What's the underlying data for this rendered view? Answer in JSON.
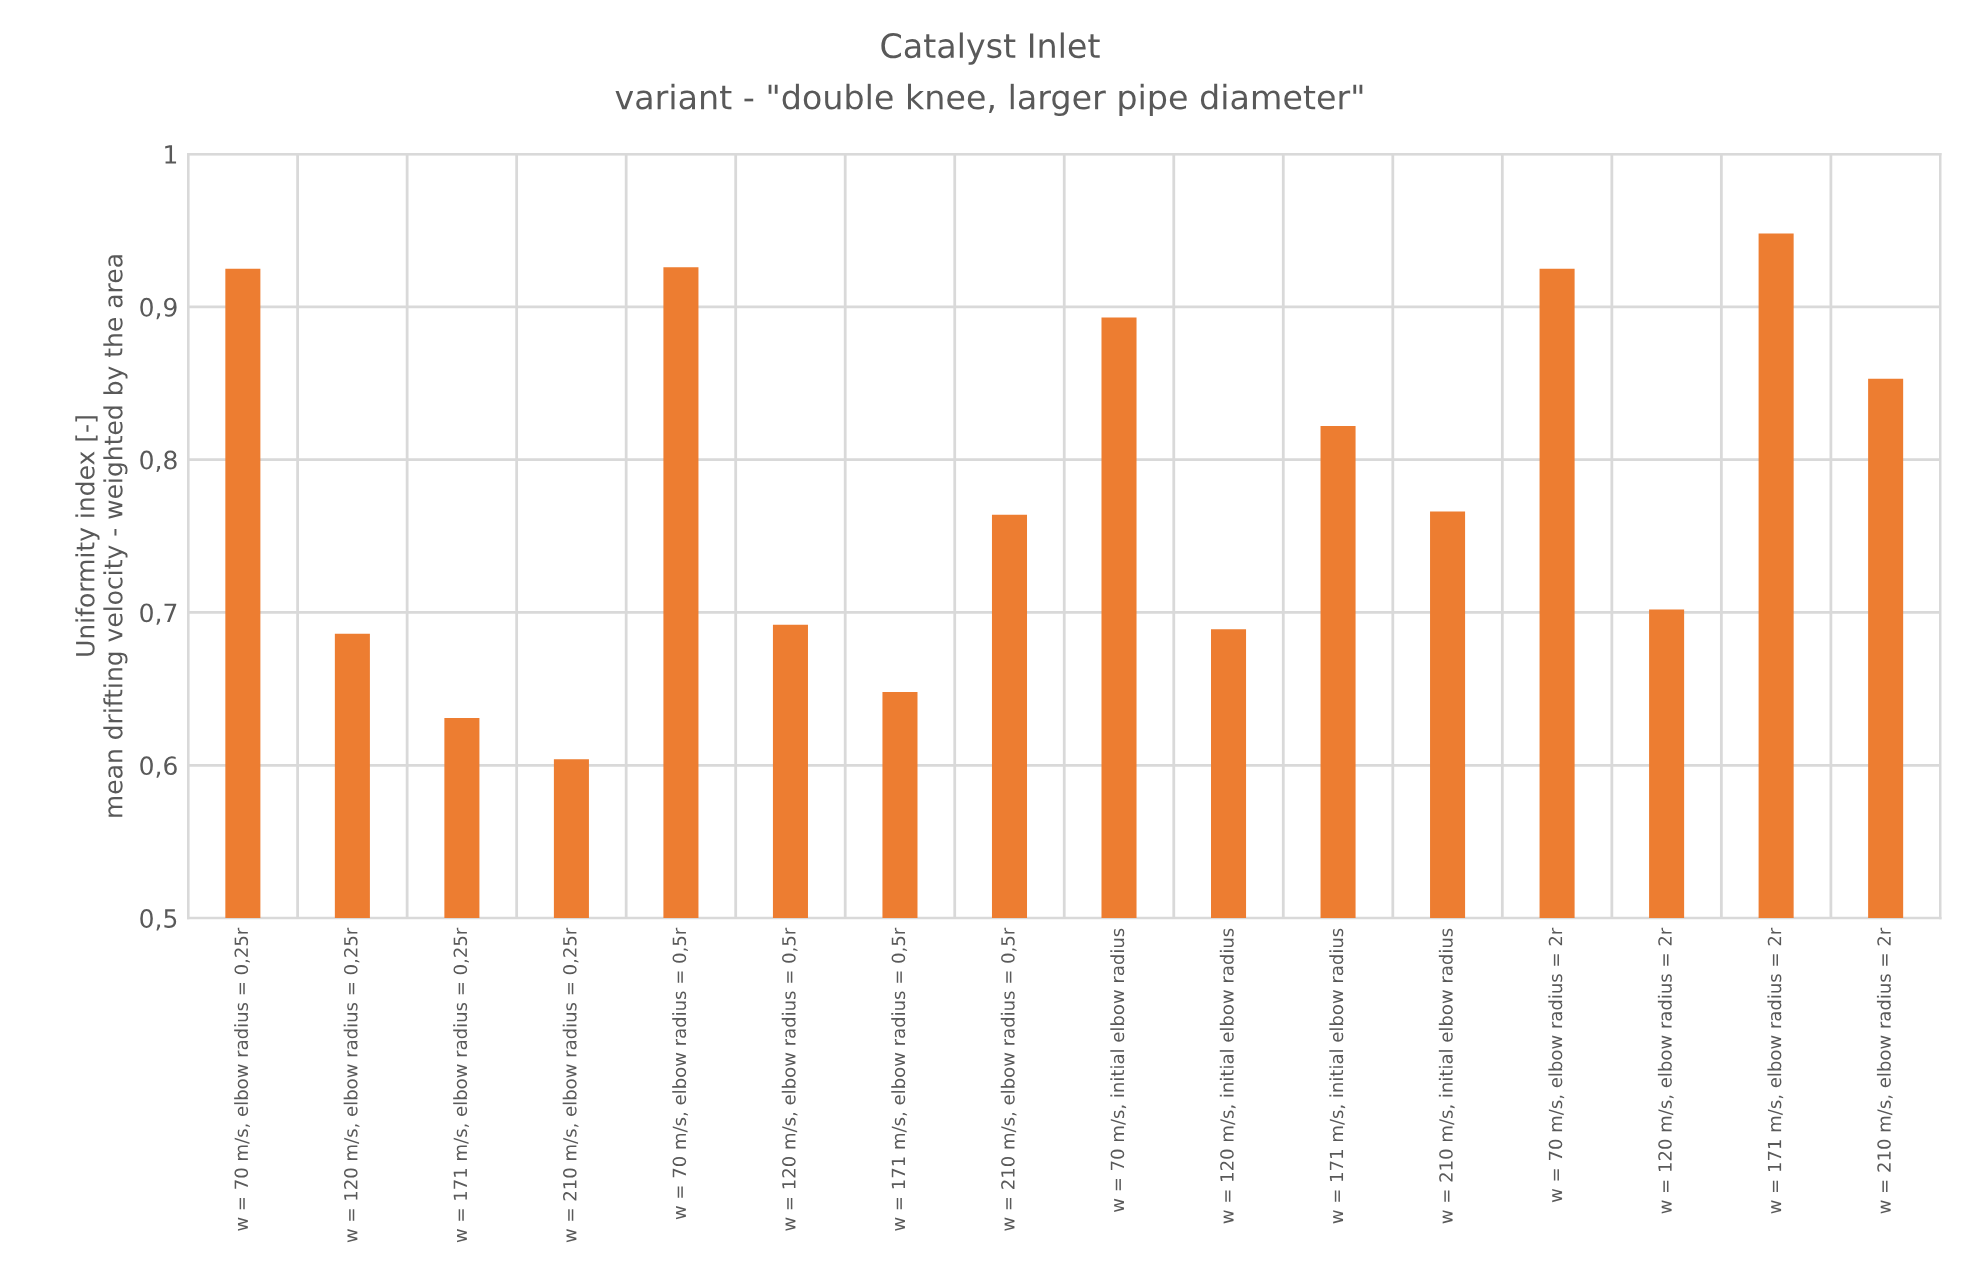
{
  "chart_data": {
    "type": "bar",
    "title": "Catalyst Inlet",
    "subtitle": "variant - \"double knee, larger pipe diameter\"",
    "ylabel": "Uniformity index [-]\nmean drifting velocity - weighted by the area",
    "categories": [
      "w = 70 m/s, elbow radius = 0,25r",
      "w = 120 m/s, elbow radius = 0,25r",
      "w = 171 m/s, elbow radius = 0,25r",
      "w = 210 m/s, elbow radius = 0,25r",
      "w = 70 m/s, elbow radius = 0,5r",
      "w = 120 m/s, elbow radius = 0,5r",
      "w = 171 m/s, elbow radius = 0,5r",
      "w = 210 m/s, elbow radius = 0,5r",
      "w = 70 m/s, initial elbow radius",
      "w = 120 m/s, initial elbow radius",
      "w = 171 m/s, initial elbow radius",
      "w = 210 m/s, initial elbow radius",
      "w = 70 m/s, elbow radius = 2r",
      "w = 120 m/s, elbow radius = 2r",
      "w = 171 m/s, elbow radius = 2r",
      "w = 210 m/s, elbow radius = 2r"
    ],
    "values": [
      0.925,
      0.686,
      0.631,
      0.604,
      0.926,
      0.692,
      0.648,
      0.764,
      0.893,
      0.689,
      0.822,
      0.766,
      0.925,
      0.702,
      0.948,
      0.853
    ],
    "color": "#ed7d31",
    "ylim": [
      0.5,
      1
    ],
    "yticks": [
      {
        "value": 0.5,
        "label": "0,5"
      },
      {
        "value": 0.6,
        "label": "0,6"
      },
      {
        "value": 0.7,
        "label": "0,7"
      },
      {
        "value": 0.8,
        "label": "0,8"
      },
      {
        "value": 0.9,
        "label": "0,9"
      },
      1
    ],
    "grid": true
  }
}
